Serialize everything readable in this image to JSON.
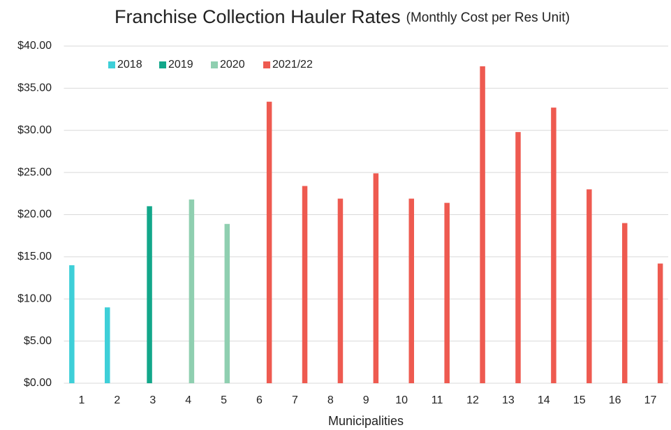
{
  "chart_data": {
    "type": "bar",
    "title": "Franchise Collection Hauler Rates",
    "subtitle": "(Monthly Cost per Res Unit)",
    "x_label": "Municipalities",
    "categories": [
      "1",
      "2",
      "3",
      "4",
      "5",
      "6",
      "7",
      "8",
      "9",
      "10",
      "11",
      "12",
      "13",
      "14",
      "15",
      "16",
      "17"
    ],
    "series": [
      {
        "name": "2018",
        "color": "#3ecfd8",
        "values": [
          14,
          9,
          null,
          null,
          null,
          null,
          null,
          null,
          null,
          null,
          null,
          null,
          null,
          null,
          null,
          null,
          null
        ]
      },
      {
        "name": "2019",
        "color": "#12a78a",
        "values": [
          null,
          null,
          21,
          null,
          null,
          null,
          null,
          null,
          null,
          null,
          null,
          null,
          null,
          null,
          null,
          null,
          null
        ]
      },
      {
        "name": "2020",
        "color": "#8fcfb0",
        "values": [
          null,
          null,
          null,
          21.8,
          18.9,
          null,
          null,
          null,
          null,
          null,
          null,
          null,
          null,
          null,
          null,
          null,
          null
        ]
      },
      {
        "name": "2021/22",
        "color": "#ee5a50",
        "values": [
          null,
          null,
          null,
          null,
          null,
          33.4,
          23.4,
          21.9,
          24.9,
          21.9,
          21.4,
          37.6,
          29.8,
          32.7,
          23.0,
          19.0,
          14.2
        ]
      }
    ],
    "ylim": [
      0,
      40
    ],
    "yticks": [
      {
        "value": 0,
        "label": "$0.00"
      },
      {
        "value": 5,
        "label": "$5.00"
      },
      {
        "value": 10,
        "label": "$10.00"
      },
      {
        "value": 15,
        "label": "$15.00"
      },
      {
        "value": 20,
        "label": "$20.00"
      },
      {
        "value": 25,
        "label": "$25.00"
      },
      {
        "value": 30,
        "label": "$30.00"
      },
      {
        "value": 35,
        "label": "$35.00"
      },
      {
        "value": 40,
        "label": "$40.00"
      }
    ],
    "grid": true,
    "legend": "top-left"
  }
}
